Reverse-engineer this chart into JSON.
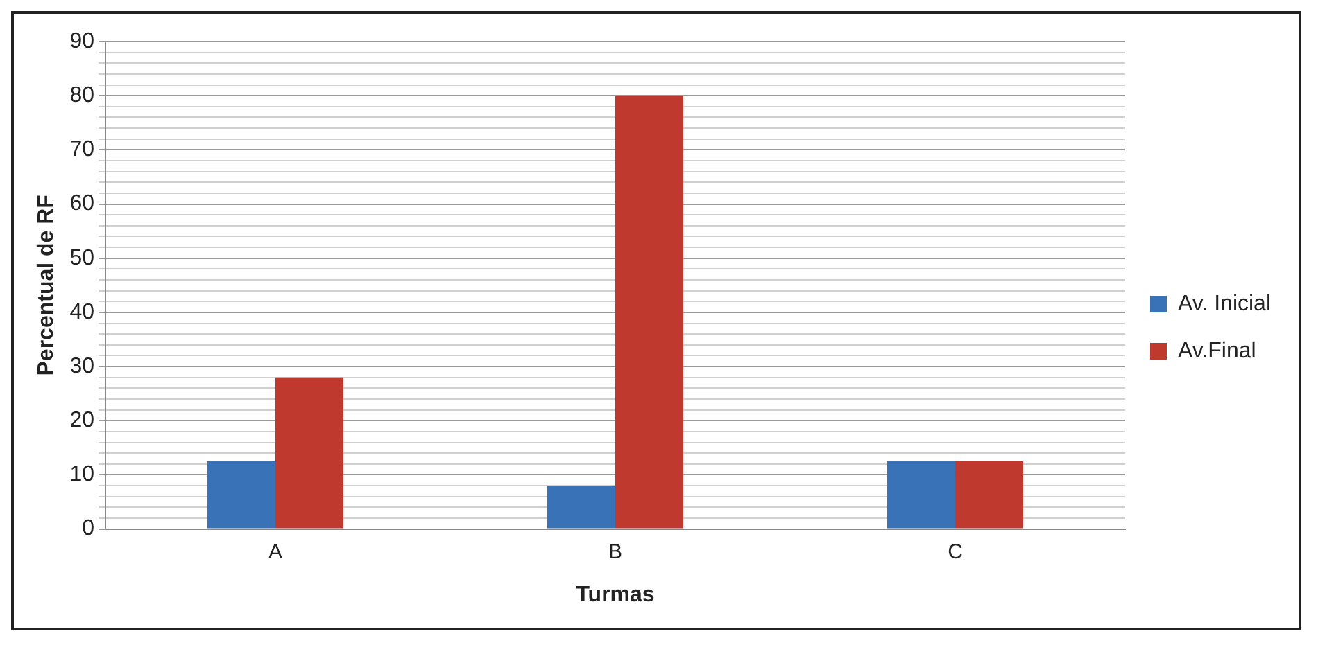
{
  "chart_data": {
    "type": "bar",
    "xlabel": "Turmas",
    "ylabel": "Percentual de RF",
    "categories": [
      "A",
      "B",
      "C"
    ],
    "series": [
      {
        "name": "Av. Inicial",
        "color": "#3a72b8",
        "values": [
          12.5,
          8,
          12.5
        ]
      },
      {
        "name": "Av.Final",
        "color": "#c0392f",
        "values": [
          28,
          80,
          12.5
        ]
      }
    ],
    "ylim": [
      0,
      90
    ],
    "yticks": [
      0,
      {
        "value": 2,
        "label": null
      },
      {
        "value": 4,
        "label": null
      },
      {
        "value": 6,
        "label": null
      },
      {
        "value": 8,
        "label": null
      },
      10,
      {
        "value": 12,
        "label": null
      },
      {
        "value": 14,
        "label": null
      },
      {
        "value": 16,
        "label": null
      },
      {
        "value": 18,
        "label": null
      },
      20,
      {
        "value": 22,
        "label": null
      },
      {
        "value": 24,
        "label": null
      },
      {
        "value": 26,
        "label": null
      },
      {
        "value": 28,
        "label": null
      },
      30,
      {
        "value": 32,
        "label": null
      },
      {
        "value": 34,
        "label": null
      },
      {
        "value": 36,
        "label": null
      },
      {
        "value": 38,
        "label": null
      },
      40,
      {
        "value": 42,
        "label": null
      },
      {
        "value": 44,
        "label": null
      },
      {
        "value": 46,
        "label": null
      },
      {
        "value": 48,
        "label": null
      },
      50,
      {
        "value": 52,
        "label": null
      },
      {
        "value": 54,
        "label": null
      },
      {
        "value": 56,
        "label": null
      },
      {
        "value": 58,
        "label": null
      },
      60,
      {
        "value": 62,
        "label": null
      },
      {
        "value": 64,
        "label": null
      },
      {
        "value": 66,
        "label": null
      },
      {
        "value": 68,
        "label": null
      },
      70,
      {
        "value": 72,
        "label": null
      },
      {
        "value": 74,
        "label": null
      },
      {
        "value": 76,
        "label": null
      },
      {
        "value": 78,
        "label": null
      },
      80,
      {
        "value": 82,
        "label": null
      },
      {
        "value": 84,
        "label": null
      },
      {
        "value": 86,
        "label": null
      },
      {
        "value": 88,
        "label": null
      },
      90
    ],
    "grid": "y",
    "legend": "right"
  }
}
